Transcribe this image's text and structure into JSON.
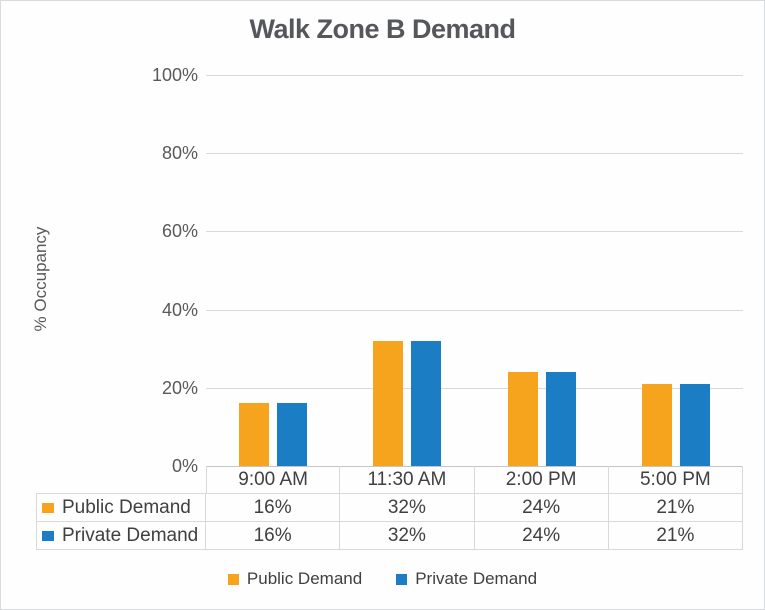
{
  "page": {
    "background": "#FEFEFE",
    "border_color": "#D9DCDF"
  },
  "chart_data": {
    "type": "bar",
    "title": "Walk Zone B Demand",
    "xlabel": "",
    "ylabel": "% Occupancy",
    "categories": [
      "9:00 AM",
      "11:30 AM",
      "2:00 PM",
      "5:00 PM"
    ],
    "series": [
      {
        "name": "Public Demand",
        "color": "#F6A31E",
        "values": [
          16,
          32,
          24,
          21
        ],
        "display_values": [
          "16%",
          "32%",
          "24%",
          "21%"
        ]
      },
      {
        "name": "Private Demand",
        "color": "#1B7EC5",
        "values": [
          16,
          32,
          24,
          21
        ],
        "display_values": [
          "16%",
          "32%",
          "24%",
          "21%"
        ]
      }
    ],
    "ylim": [
      0,
      100
    ],
    "ytick_labels_top_to_bottom": [
      "100%",
      "80%",
      "60%",
      "40%",
      "20%",
      "0%"
    ],
    "grid": true,
    "data_table_shown": true,
    "legend_position": "bottom",
    "legend_entries": [
      "Public Demand",
      "Private Demand"
    ]
  },
  "colors": {
    "grid_line": "#D9D9D9",
    "axis_line": "#C3C6C9",
    "table_border": "#D9D9D9",
    "title_text": "#55575B",
    "axis_text": "#595959",
    "table_text": "#404040",
    "public_series": "#F6A31E",
    "private_series": "#1B7EC5"
  }
}
